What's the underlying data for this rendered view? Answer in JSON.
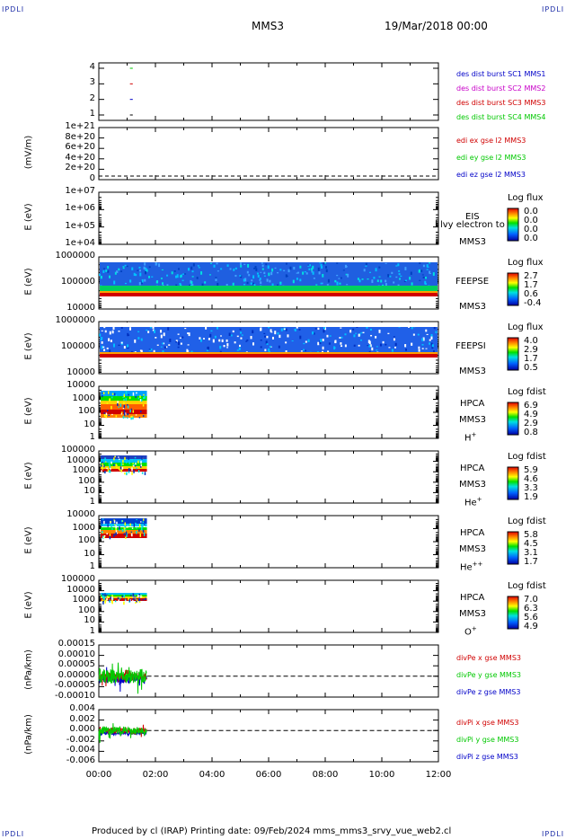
{
  "corners": {
    "tl": "IPDLI",
    "tr": "IPDLI",
    "bl": "IPDLI",
    "br": "IPDLI"
  },
  "header": {
    "title": "MMS3",
    "date": "19/Mar/2018 00:00"
  },
  "footer": "Produced by cl (IRAP)   Printing date: 09/Feb/2024   mms_mms3_srvy_vue_web2.cl",
  "x_axis": {
    "ticks": [
      "00:00",
      "02:00",
      "04:00",
      "06:00",
      "08:00",
      "10:00",
      "12:00"
    ]
  },
  "colors": {
    "black": "#000000",
    "red": "#d00000",
    "green": "#00c800",
    "blue": "#0000c8",
    "magenta": "#c800c8"
  },
  "panels": [
    {
      "id": "des",
      "ylabel": "",
      "yticks": [
        "4",
        "3",
        "2",
        "1"
      ],
      "legend": [
        {
          "text": "des dist burst SC1 MMS1",
          "color": "#0000c8"
        },
        {
          "text": "des dist burst SC2 MMS2",
          "color": "#c800c8"
        },
        {
          "text": "des dist burst SC3 MMS3",
          "color": "#d00000"
        },
        {
          "text": "des dist burst SC4 MMS4",
          "color": "#00c800"
        }
      ]
    },
    {
      "id": "edi",
      "ylabel": "(mV/m)",
      "yticks": [
        "1e+21",
        "8e+20",
        "6e+20",
        "4e+20",
        "2e+20",
        "0"
      ],
      "legend": [
        {
          "text": "edi ex gse l2 MMS3",
          "color": "#d00000"
        },
        {
          "text": "edi ey gse l2 MMS3",
          "color": "#00c800"
        },
        {
          "text": "edi ez gse l2 MMS3",
          "color": "#0000c8"
        }
      ]
    },
    {
      "id": "eis",
      "ylabel": "E (eV)",
      "yticks": [
        "1e+07",
        "1e+06",
        "1e+05",
        "1e+04"
      ],
      "inst": [
        "EIS",
        "MMS3"
      ],
      "overlay": "l lvy electron to",
      "colorbar": {
        "title": "Log flux",
        "ticks": [
          "0.0",
          "0.0",
          "0.0",
          "0.0"
        ]
      }
    },
    {
      "id": "feepse",
      "ylabel": "E (eV)",
      "yticks": [
        "1000000",
        "100000",
        "10000"
      ],
      "inst": [
        "FEEPSE",
        "MMS3"
      ],
      "colorbar": {
        "title": "Log flux",
        "ticks": [
          "2.7",
          "1.7",
          "0.6",
          "-0.4"
        ]
      }
    },
    {
      "id": "feepsi",
      "ylabel": "E (eV)",
      "yticks": [
        "1000000",
        "100000",
        "10000"
      ],
      "inst": [
        "FEEPSI",
        "MMS3"
      ],
      "colorbar": {
        "title": "Log flux",
        "ticks": [
          "4.0",
          "2.9",
          "1.7",
          "0.5"
        ]
      }
    },
    {
      "id": "hpca_h",
      "ylabel": "E (eV)",
      "yticks": [
        "10000",
        "1000",
        "100",
        "10",
        "1"
      ],
      "inst": [
        "HPCA",
        "MMS3"
      ],
      "species": "H",
      "sup": "+",
      "colorbar": {
        "title": "Log fdist",
        "ticks": [
          "6.9",
          "4.9",
          "2.9",
          "0.8"
        ]
      }
    },
    {
      "id": "hpca_he",
      "ylabel": "E (eV)",
      "yticks": [
        "100000",
        "10000",
        "1000",
        "100",
        "10",
        "1"
      ],
      "inst": [
        "HPCA",
        "MMS3"
      ],
      "species": "He",
      "sup": "+",
      "colorbar": {
        "title": "Log fdist",
        "ticks": [
          "5.9",
          "4.6",
          "3.3",
          "1.9"
        ]
      }
    },
    {
      "id": "hpca_hepp",
      "ylabel": "E (eV)",
      "yticks": [
        "10000",
        "1000",
        "100",
        "10",
        "1"
      ],
      "inst": [
        "HPCA",
        "MMS3"
      ],
      "species": "He",
      "sup": "++",
      "colorbar": {
        "title": "Log fdist",
        "ticks": [
          "5.8",
          "4.5",
          "3.1",
          "1.7"
        ]
      }
    },
    {
      "id": "hpca_o",
      "ylabel": "E (eV)",
      "yticks": [
        "100000",
        "10000",
        "1000",
        "100",
        "10",
        "1"
      ],
      "inst": [
        "HPCA",
        "MMS3"
      ],
      "species": "O",
      "sup": "+",
      "colorbar": {
        "title": "Log fdist",
        "ticks": [
          "7.0",
          "6.3",
          "5.6",
          "4.9"
        ]
      }
    },
    {
      "id": "divpe",
      "ylabel": "(nPa/km)",
      "yticks": [
        "0.00015",
        "0.00010",
        "0.00005",
        "0.00000",
        "-0.00005",
        "-0.00010"
      ],
      "legend": [
        {
          "text": "divPe x gse MMS3",
          "color": "#d00000"
        },
        {
          "text": "divPe y gse MMS3",
          "color": "#00c800"
        },
        {
          "text": "divPe z gse MMS3",
          "color": "#0000c8"
        }
      ]
    },
    {
      "id": "divpi",
      "ylabel": "(nPa/km)",
      "yticks": [
        "0.004",
        "0.002",
        "0.000",
        "-0.002",
        "-0.004",
        "-0.006"
      ],
      "legend": [
        {
          "text": "divPi x gse MMS3",
          "color": "#d00000"
        },
        {
          "text": "divPi y gse MMS3",
          "color": "#00c800"
        },
        {
          "text": "divPi z gse MMS3",
          "color": "#0000c8"
        }
      ]
    }
  ]
}
